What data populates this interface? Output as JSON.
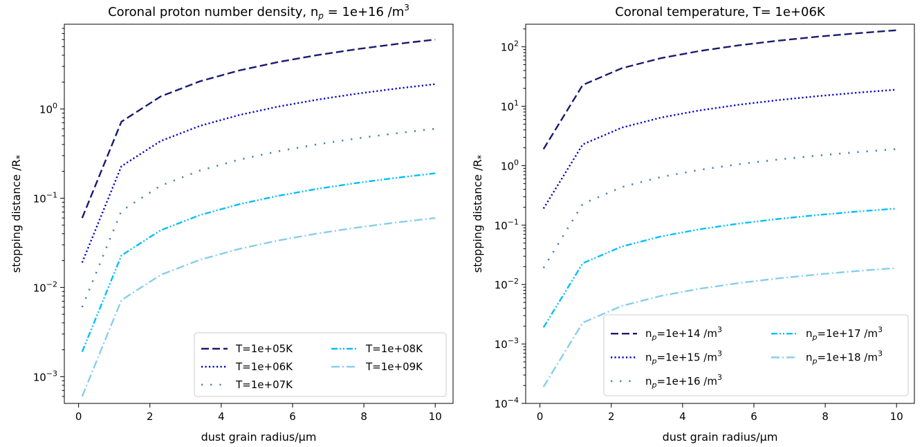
{
  "chart_data": [
    {
      "type": "line",
      "title": "Coronal proton number density, n_p = 1e+16 /m^3",
      "title_text": "Coronal proton number density, n",
      "title_sub": "p",
      "title_mid": " = 1e+16 /m",
      "title_sup": "3",
      "xlabel": "dust grain radius/μm",
      "ylabel": "stopping distance /R*",
      "ylabel_main": "stopping distance /R",
      "ylabel_sub": "*",
      "yscale": "log",
      "xlim": [
        -0.4,
        10.5
      ],
      "ylim_log10": [
        -3.3,
        0.95
      ],
      "xticks": [
        0,
        2,
        4,
        6,
        8,
        10
      ],
      "xtick_labels": [
        "0",
        "2",
        "4",
        "6",
        "8",
        "10"
      ],
      "yticks_log10": [
        -3,
        -2,
        -1,
        0
      ],
      "legend_placement": "lower-right",
      "legend_columns": 2,
      "x": [
        0.1,
        1.2,
        2.3,
        3.4,
        4.5,
        5.6,
        6.7,
        7.8,
        8.9,
        10.0
      ],
      "series": [
        {
          "name": "T=1e+05K",
          "label_pre": "T=1e+05K",
          "label_sub": "",
          "label_mid": "",
          "label_sup": "",
          "color": "#191970",
          "style": "dashed",
          "values": [
            0.06,
            0.72,
            1.38,
            2.04,
            2.7,
            3.36,
            4.02,
            4.68,
            5.34,
            6.0
          ]
        },
        {
          "name": "T=1e+06K",
          "label_pre": "T=1e+06K",
          "label_sub": "",
          "label_mid": "",
          "label_sup": "",
          "color": "#0000cd",
          "style": "dotted",
          "values": [
            0.019,
            0.228,
            0.437,
            0.646,
            0.855,
            1.064,
            1.273,
            1.482,
            1.691,
            1.9
          ]
        },
        {
          "name": "T=1e+07K",
          "label_pre": "T=1e+07K",
          "label_sub": "",
          "label_mid": "",
          "label_sup": "",
          "color": "#4682b4",
          "style": "loose-dotted",
          "values": [
            0.006,
            0.072,
            0.138,
            0.204,
            0.27,
            0.336,
            0.402,
            0.468,
            0.534,
            0.6
          ]
        },
        {
          "name": "T=1e+08K",
          "label_pre": "T=1e+08K",
          "label_sub": "",
          "label_mid": "",
          "label_sup": "",
          "color": "#00bfff",
          "style": "dashdotdot",
          "values": [
            0.0019,
            0.0228,
            0.0437,
            0.0646,
            0.0855,
            0.1064,
            0.1273,
            0.1482,
            0.1691,
            0.19
          ]
        },
        {
          "name": "T=1e+09K",
          "label_pre": "T=1e+09K",
          "label_sub": "",
          "label_mid": "",
          "label_sup": "",
          "color": "#87ceeb",
          "style": "dashdot",
          "values": [
            0.0006,
            0.0072,
            0.0138,
            0.0204,
            0.027,
            0.0336,
            0.0402,
            0.0468,
            0.0534,
            0.06
          ]
        }
      ]
    },
    {
      "type": "line",
      "title": "Coronal temperature, T= 1e+06K",
      "title_text": "Coronal temperature, T= 1e+06K",
      "title_sub": "",
      "title_mid": "",
      "title_sup": "",
      "xlabel": "dust grain radius/μm",
      "ylabel": "stopping distance /R*",
      "ylabel_main": "stopping distance /R",
      "ylabel_sub": "*",
      "yscale": "log",
      "xlim": [
        -0.4,
        10.5
      ],
      "ylim_log10": [
        -4.0,
        2.38
      ],
      "xticks": [
        0,
        2,
        4,
        6,
        8,
        10
      ],
      "xtick_labels": [
        "0",
        "2",
        "4",
        "6",
        "8",
        "10"
      ],
      "yticks_log10": [
        -4,
        -3,
        -2,
        -1,
        0,
        1,
        2
      ],
      "legend_placement": "lower-right",
      "legend_columns": 2,
      "x": [
        0.1,
        1.2,
        2.3,
        3.4,
        4.5,
        5.6,
        6.7,
        7.8,
        8.9,
        10.0
      ],
      "series": [
        {
          "name": "n_p=1e+14 /m^3",
          "label_pre": "n",
          "label_sub": "p",
          "label_mid": "=1e+14 /m",
          "label_sup": "3",
          "color": "#191970",
          "style": "dashed",
          "values": [
            1.9,
            22.8,
            43.7,
            64.6,
            85.5,
            106.4,
            127.3,
            148.2,
            169.1,
            190
          ]
        },
        {
          "name": "n_p=1e+15 /m^3",
          "label_pre": "n",
          "label_sub": "p",
          "label_mid": "=1e+15 /m",
          "label_sup": "3",
          "color": "#0000cd",
          "style": "dotted",
          "values": [
            0.19,
            2.28,
            4.37,
            6.46,
            8.55,
            10.64,
            12.73,
            14.82,
            16.91,
            19.0
          ]
        },
        {
          "name": "n_p=1e+16 /m^3",
          "label_pre": "n",
          "label_sub": "p",
          "label_mid": "=1e+16 /m",
          "label_sup": "3",
          "color": "#4682b4",
          "style": "loose-dotted",
          "values": [
            0.019,
            0.228,
            0.437,
            0.646,
            0.855,
            1.064,
            1.273,
            1.482,
            1.691,
            1.9
          ]
        },
        {
          "name": "n_p=1e+17 /m^3",
          "label_pre": "n",
          "label_sub": "p",
          "label_mid": "=1e+17 /m",
          "label_sup": "3",
          "color": "#00bfff",
          "style": "dashdotdot",
          "values": [
            0.0019,
            0.0228,
            0.0437,
            0.0646,
            0.0855,
            0.1064,
            0.1273,
            0.1482,
            0.1691,
            0.19
          ]
        },
        {
          "name": "n_p=1e+18 /m^3",
          "label_pre": "n",
          "label_sub": "p",
          "label_mid": "=1e+18 /m",
          "label_sup": "3",
          "color": "#87ceeb",
          "style": "dashdot",
          "values": [
            0.00019,
            0.00228,
            0.00437,
            0.00646,
            0.00855,
            0.01064,
            0.01273,
            0.01482,
            0.01691,
            0.019
          ]
        }
      ]
    }
  ]
}
